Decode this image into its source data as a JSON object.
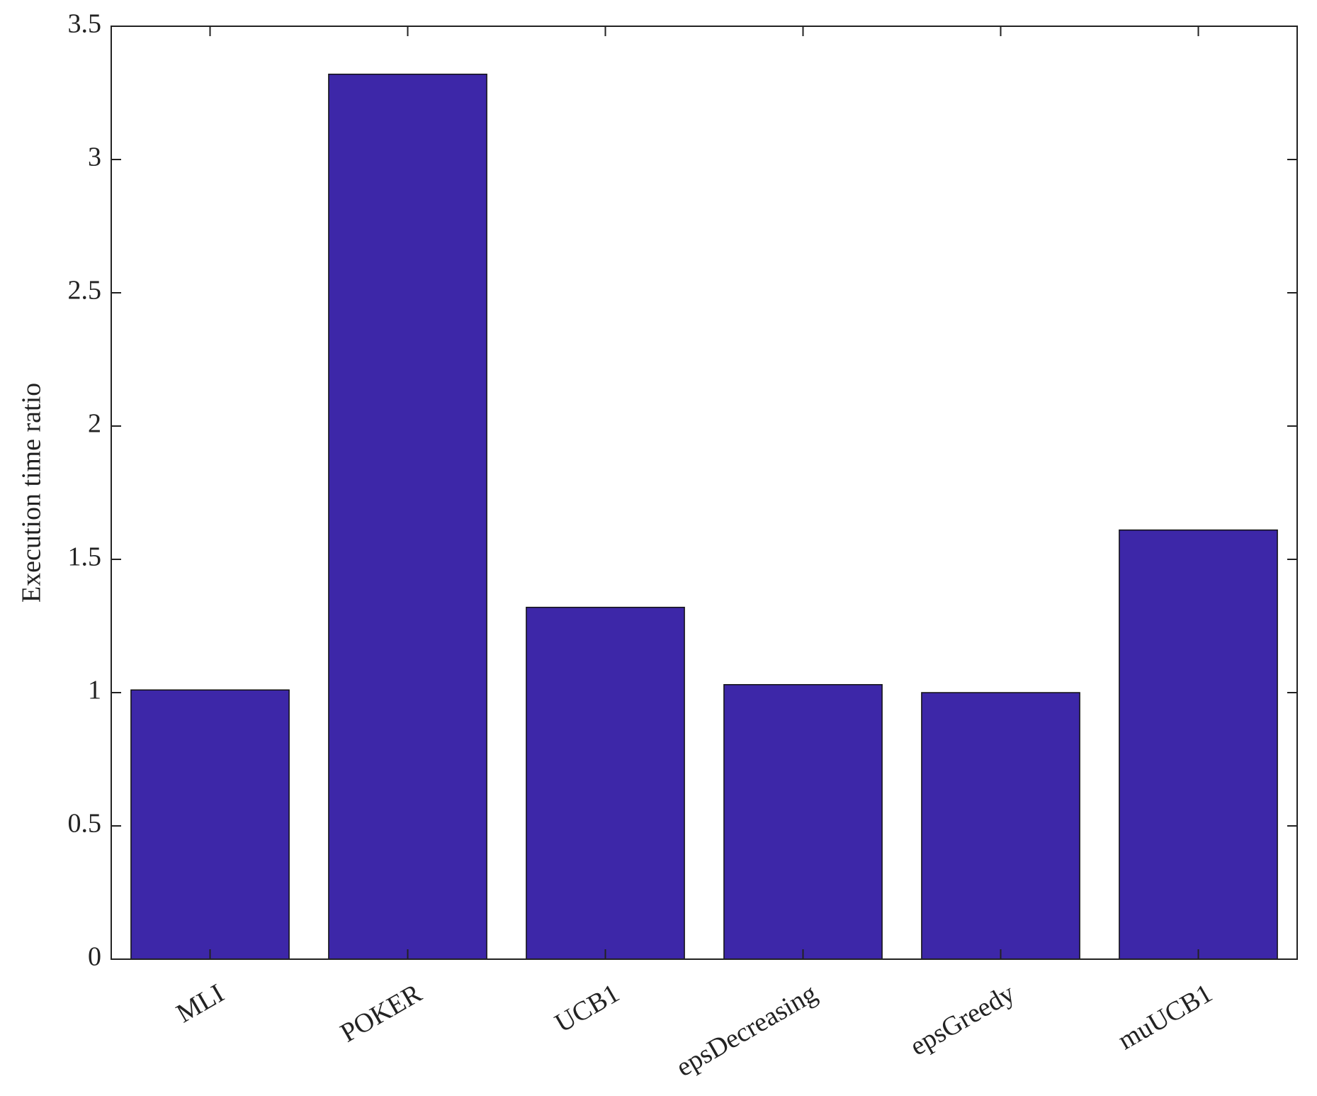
{
  "chart_data": {
    "type": "bar",
    "y_label": "Execution time ratio",
    "categories": [
      "MLI",
      "POKER",
      "UCB1",
      "epsDecreasing",
      "epsGreedy",
      "muUCB1"
    ],
    "values": [
      1.01,
      3.32,
      1.32,
      1.03,
      1.0,
      1.61
    ],
    "color": "#3d27a8",
    "ylim": [
      0,
      3.5
    ],
    "yticks": [
      0,
      0.5,
      1,
      1.5,
      2,
      2.5,
      3,
      3.5
    ],
    "grid": false
  }
}
